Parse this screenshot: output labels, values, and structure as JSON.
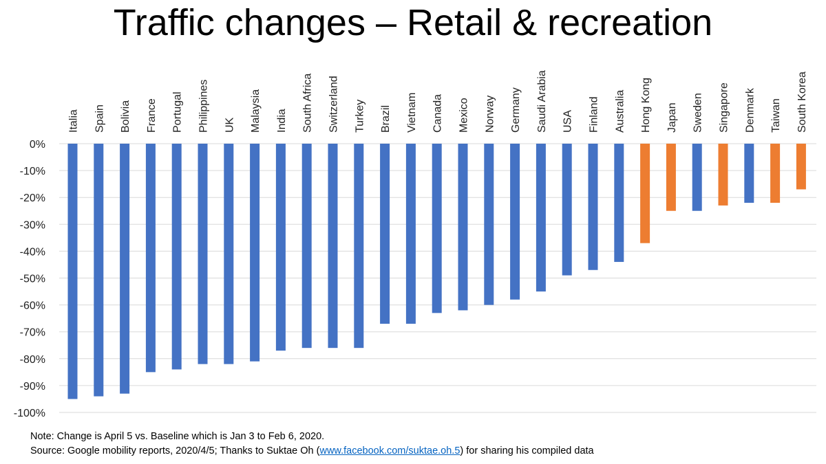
{
  "chart_data": {
    "type": "bar",
    "title": "Traffic changes – Retail & recreation",
    "xlabel": "",
    "ylabel": "",
    "ylim": [
      -100,
      0
    ],
    "yticks": [
      0,
      -10,
      -20,
      -30,
      -40,
      -50,
      -60,
      -70,
      -80,
      -90,
      -100
    ],
    "ytick_labels": [
      "0%",
      "-10%",
      "-20%",
      "-30%",
      "-40%",
      "-50%",
      "-60%",
      "-70%",
      "-80%",
      "-90%",
      "-100%"
    ],
    "grid": true,
    "colors": {
      "default": "#4472c4",
      "highlight": "#ed7d31"
    },
    "categories": [
      "Italia",
      "Spain",
      "Bolivia",
      "France",
      "Portugal",
      "Philippines",
      "UK",
      "Malaysia",
      "India",
      "South Africa",
      "Switzerland",
      "Turkey",
      "Brazil",
      "Vietnam",
      "Canada",
      "Mexico",
      "Norway",
      "Germany",
      "Saudi Arabia",
      "USA",
      "Finland",
      "Australia",
      "Hong Kong",
      "Japan",
      "Sweden",
      "Singapore",
      "Denmark",
      "Taiwan",
      "South Korea"
    ],
    "values": [
      -95,
      -94,
      -93,
      -85,
      -84,
      -82,
      -82,
      -81,
      -77,
      -76,
      -76,
      -76,
      -67,
      -67,
      -63,
      -62,
      -60,
      -58,
      -55,
      -49,
      -47,
      -44,
      -37,
      -25,
      -25,
      -23,
      -22,
      -22,
      -17
    ],
    "highlighted": [
      false,
      false,
      false,
      false,
      false,
      false,
      false,
      false,
      false,
      false,
      false,
      false,
      false,
      false,
      false,
      false,
      false,
      false,
      false,
      false,
      false,
      false,
      true,
      true,
      false,
      true,
      false,
      true,
      true
    ]
  },
  "notes": {
    "line1": "Note: Change is April 5 vs. Baseline which is Jan 3 to Feb 6, 2020.",
    "line2_prefix": "Source: Google mobility reports, 2020/4/5; Thanks to Suktae Oh (",
    "link_text": "www.facebook.com/suktae.oh.5",
    "line2_suffix": ") for sharing his compiled data"
  }
}
